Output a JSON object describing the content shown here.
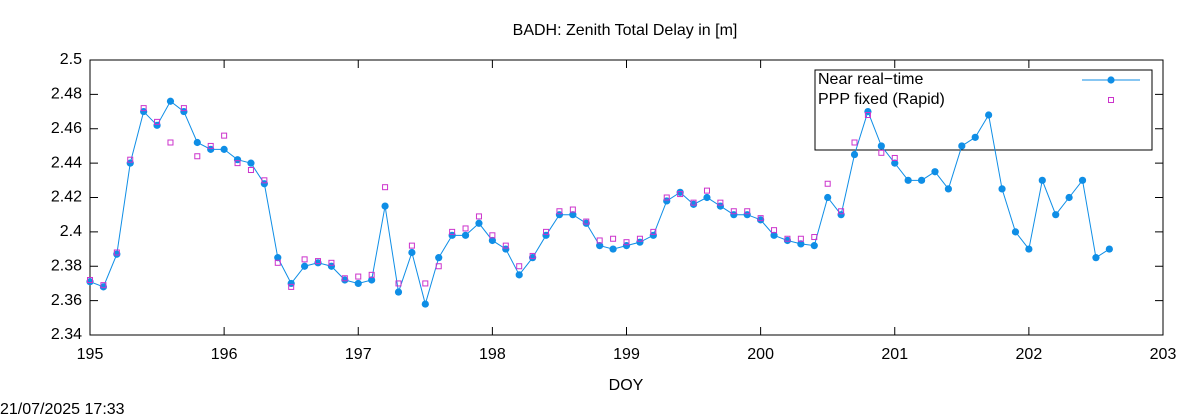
{
  "chart_data": {
    "type": "line",
    "title": "BADH: Zenith Total Delay in [m]",
    "xlabel": "DOY",
    "timestamp": "21/07/2025 17:33",
    "xlim": [
      195,
      203
    ],
    "xticks": [
      195,
      196,
      197,
      198,
      199,
      200,
      201,
      202,
      203
    ],
    "ylim": [
      2.34,
      2.5
    ],
    "yticks": [
      2.34,
      2.36,
      2.38,
      2.4,
      2.42,
      2.44,
      2.46,
      2.48,
      2.5
    ],
    "legend": "top-right",
    "grid": false,
    "series": [
      {
        "name": "Near real−time",
        "color": "#0f8ee6",
        "style": "linespoints",
        "x": [
          195.0,
          195.1,
          195.2,
          195.3,
          195.4,
          195.5,
          195.6,
          195.7,
          195.8,
          195.9,
          196.0,
          196.1,
          196.2,
          196.3,
          196.4,
          196.5,
          196.6,
          196.7,
          196.8,
          196.9,
          197.0,
          197.1,
          197.2,
          197.3,
          197.4,
          197.5,
          197.6,
          197.7,
          197.8,
          197.9,
          198.0,
          198.1,
          198.2,
          198.3,
          198.4,
          198.5,
          198.6,
          198.7,
          198.8,
          198.9,
          199.0,
          199.1,
          199.2,
          199.3,
          199.4,
          199.5,
          199.6,
          199.7,
          199.8,
          199.9,
          200.0,
          200.1,
          200.2,
          200.3,
          200.4,
          200.5,
          200.6,
          200.7,
          200.8,
          200.9,
          201.0,
          201.1,
          201.2,
          201.3,
          201.4,
          201.5,
          201.6,
          201.7,
          201.8,
          201.9,
          202.0,
          202.1,
          202.2,
          202.3,
          202.4,
          202.5,
          202.6
        ],
        "values": [
          2.371,
          2.368,
          2.387,
          2.44,
          2.47,
          2.462,
          2.476,
          2.47,
          2.452,
          2.448,
          2.448,
          2.442,
          2.44,
          2.428,
          2.385,
          2.37,
          2.38,
          2.382,
          2.38,
          2.372,
          2.37,
          2.372,
          2.415,
          2.365,
          2.388,
          2.358,
          2.385,
          2.398,
          2.398,
          2.405,
          2.395,
          2.39,
          2.375,
          2.385,
          2.398,
          2.41,
          2.41,
          2.405,
          2.392,
          2.39,
          2.392,
          2.394,
          2.398,
          2.418,
          2.423,
          2.416,
          2.42,
          2.415,
          2.41,
          2.41,
          2.407,
          2.398,
          2.395,
          2.393,
          2.392,
          2.42,
          2.41,
          2.445,
          2.47,
          2.45,
          2.44,
          2.43,
          2.43,
          2.435,
          2.425,
          2.45,
          2.455,
          2.468,
          2.425,
          2.4,
          2.39,
          2.43,
          2.41,
          2.42,
          2.43,
          2.385,
          2.39
        ]
      },
      {
        "name": "PPP fixed (Rapid)",
        "color": "#cc33cc",
        "style": "points",
        "x": [
          195.0,
          195.1,
          195.2,
          195.3,
          195.4,
          195.5,
          195.6,
          195.7,
          195.8,
          195.9,
          196.0,
          196.1,
          196.2,
          196.3,
          196.4,
          196.5,
          196.6,
          196.7,
          196.8,
          196.9,
          197.0,
          197.1,
          197.2,
          197.3,
          197.4,
          197.5,
          197.6,
          197.7,
          197.8,
          197.9,
          198.0,
          198.1,
          198.2,
          198.3,
          198.4,
          198.5,
          198.6,
          198.7,
          198.8,
          198.9,
          199.0,
          199.1,
          199.2,
          199.3,
          199.4,
          199.5,
          199.6,
          199.7,
          199.8,
          199.9,
          200.0,
          200.1,
          200.2,
          200.3,
          200.4,
          200.5,
          200.6,
          200.7,
          200.8,
          200.9,
          201.0
        ],
        "values": [
          2.372,
          2.369,
          2.388,
          2.442,
          2.472,
          2.464,
          2.452,
          2.472,
          2.444,
          2.45,
          2.456,
          2.44,
          2.436,
          2.43,
          2.382,
          2.368,
          2.384,
          2.383,
          2.382,
          2.373,
          2.374,
          2.375,
          2.426,
          2.37,
          2.392,
          2.37,
          2.38,
          2.4,
          2.402,
          2.409,
          2.398,
          2.392,
          2.38,
          2.386,
          2.4,
          2.412,
          2.413,
          2.406,
          2.395,
          2.396,
          2.394,
          2.396,
          2.4,
          2.42,
          2.422,
          2.417,
          2.424,
          2.417,
          2.412,
          2.412,
          2.408,
          2.401,
          2.396,
          2.396,
          2.397,
          2.428,
          2.412,
          2.452,
          2.468,
          2.446,
          2.443
        ]
      }
    ]
  }
}
